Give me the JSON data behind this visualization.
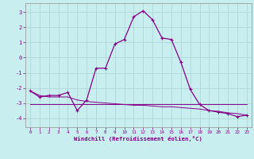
{
  "xlabel": "Windchill (Refroidissement éolien,°C)",
  "bg_color": "#c8eef0",
  "grid_color": "#b0d8d8",
  "line_color": "#880088",
  "ylim": [
    -4.6,
    3.6
  ],
  "xlim": [
    -0.5,
    23.5
  ],
  "yticks": [
    -4,
    -3,
    -2,
    -1,
    0,
    1,
    2,
    3
  ],
  "xticks": [
    0,
    1,
    2,
    3,
    4,
    5,
    6,
    7,
    8,
    9,
    10,
    11,
    12,
    13,
    14,
    15,
    16,
    17,
    18,
    19,
    20,
    21,
    22,
    23
  ],
  "line1_x": [
    0,
    1,
    2,
    3,
    4,
    5,
    6,
    7,
    8,
    9,
    10,
    11,
    12,
    13,
    14,
    15,
    16,
    17,
    18,
    19,
    20,
    21,
    22,
    23
  ],
  "line1_y": [
    -2.2,
    -2.6,
    -2.5,
    -2.5,
    -2.3,
    -3.5,
    -2.8,
    -0.7,
    -0.7,
    0.9,
    1.2,
    2.7,
    3.1,
    2.5,
    1.3,
    1.2,
    -0.3,
    -2.1,
    -3.1,
    -3.5,
    -3.6,
    -3.7,
    -3.9,
    -3.8
  ],
  "line2_x": [
    0,
    1,
    2,
    3,
    4,
    5,
    6,
    7,
    8,
    9,
    10,
    11,
    12,
    13,
    14,
    15,
    16,
    17,
    18,
    19,
    20,
    21,
    22,
    23
  ],
  "line2_y": [
    -3.1,
    -3.1,
    -3.1,
    -3.1,
    -3.1,
    -3.1,
    -3.1,
    -3.1,
    -3.1,
    -3.1,
    -3.1,
    -3.1,
    -3.1,
    -3.1,
    -3.1,
    -3.1,
    -3.1,
    -3.1,
    -3.1,
    -3.1,
    -3.1,
    -3.1,
    -3.1,
    -3.1
  ],
  "line3_x": [
    0,
    1,
    2,
    3,
    4,
    5,
    6,
    7,
    8,
    9,
    10,
    11,
    12,
    13,
    14,
    15,
    16,
    17,
    18,
    19,
    20,
    21,
    22,
    23
  ],
  "line3_y": [
    -2.2,
    -2.5,
    -2.6,
    -2.6,
    -2.6,
    -2.8,
    -2.9,
    -2.95,
    -3.0,
    -3.05,
    -3.1,
    -3.15,
    -3.15,
    -3.2,
    -3.25,
    -3.25,
    -3.3,
    -3.35,
    -3.4,
    -3.5,
    -3.55,
    -3.65,
    -3.7,
    -3.8
  ]
}
